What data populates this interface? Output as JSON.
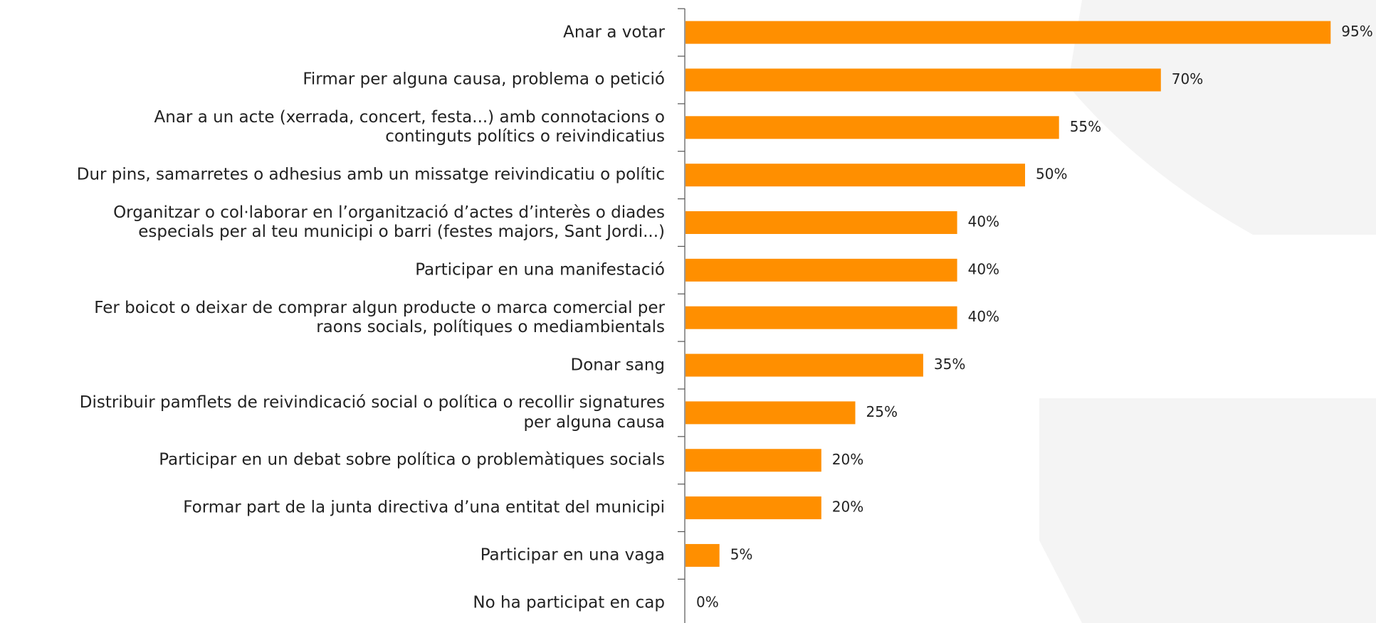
{
  "chart_data": {
    "type": "bar",
    "orientation": "horizontal",
    "color": "#ff8f00",
    "categories": [
      "Anar a votar",
      "Firmar per alguna causa, problema o petició",
      "Anar a un acte (xerrada, concert, festa...) amb connotacions o\ncontinguts polítics o reivindicatius",
      "Dur pins, samarretes o adhesius amb un missatge reivindicatiu o polític",
      "Organitzar o col·laborar en l’organització d’actes d’interès o diades\nespecials per al teu municipi o barri (festes majors, Sant Jordi...)",
      "Participar en una manifestació",
      "Fer boicot o deixar de comprar algun producte o marca comercial per\nraons socials, polítiques o mediambientals",
      "Donar sang",
      "Distribuir pamflets de reivindicació social o política o recollir signatures\nper alguna causa",
      "Participar en un debat sobre política o problemàtiques socials",
      "Formar part de la junta directiva d’una entitat del municipi",
      "Participar en una vaga",
      "No ha participat en cap"
    ],
    "values": [
      95,
      70,
      55,
      50,
      40,
      40,
      40,
      35,
      25,
      20,
      20,
      5,
      0
    ],
    "value_labels": [
      "95%",
      "70%",
      "55%",
      "50%",
      "40%",
      "40%",
      "40%",
      "35%",
      "25%",
      "20%",
      "20%",
      "5%",
      "0%"
    ]
  }
}
